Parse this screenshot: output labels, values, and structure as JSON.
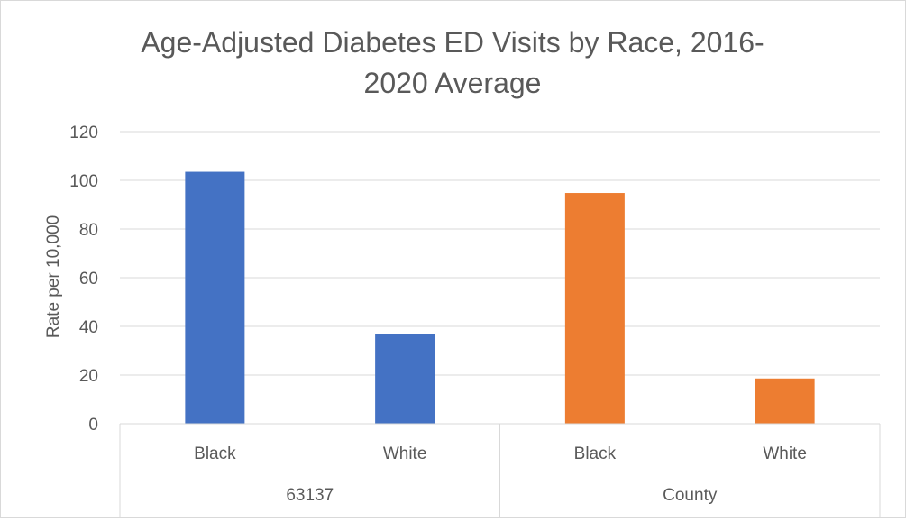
{
  "chart_data": {
    "type": "bar",
    "title_lines": [
      "Age-Adjusted Diabetes ED Visits by Race, 2016-",
      "2020 Average"
    ],
    "ylabel": "Rate per 10,000",
    "xlabel": "",
    "ylim": [
      0,
      120
    ],
    "yticks": [
      0,
      20,
      40,
      60,
      80,
      100,
      120
    ],
    "grid": true,
    "groups": [
      {
        "label": "63137",
        "color": "#4472C4",
        "categories": [
          "Black",
          "White"
        ],
        "values": [
          103.5,
          36.8
        ]
      },
      {
        "label": "County",
        "color": "#ED7D31",
        "categories": [
          "Black",
          "White"
        ],
        "values": [
          94.8,
          18.6
        ]
      }
    ]
  }
}
